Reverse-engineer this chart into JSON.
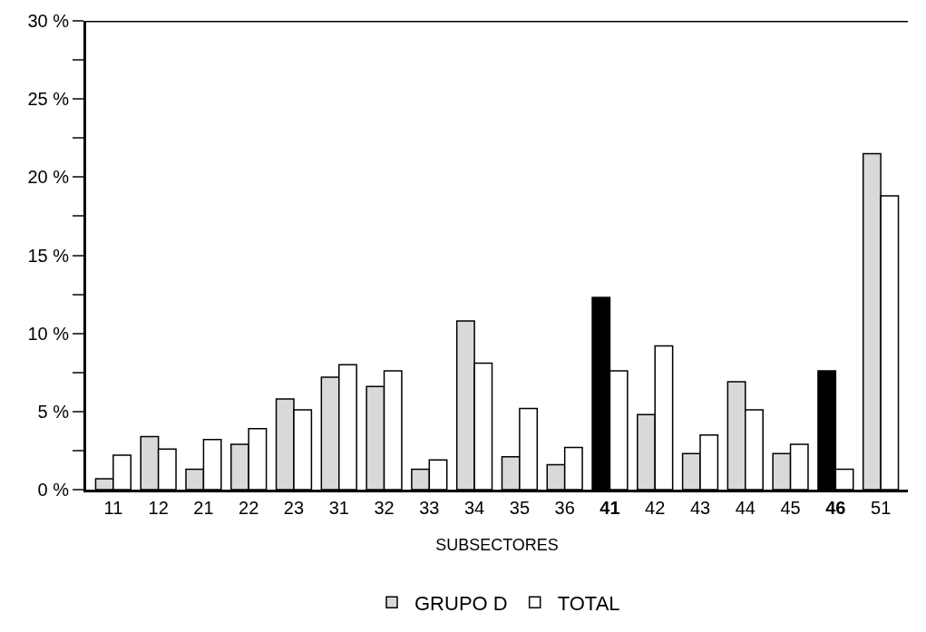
{
  "chart_data": {
    "type": "bar",
    "xlabel": "SUBSECTORES",
    "categories": [
      "11",
      "12",
      "21",
      "22",
      "23",
      "31",
      "32",
      "33",
      "34",
      "35",
      "36",
      "41",
      "42",
      "43",
      "44",
      "45",
      "46",
      "51"
    ],
    "series": [
      {
        "name": "GRUPO D",
        "colors": [
          "#d9d9d9",
          "#d9d9d9",
          "#d9d9d9",
          "#d9d9d9",
          "#d9d9d9",
          "#d9d9d9",
          "#d9d9d9",
          "#d9d9d9",
          "#d9d9d9",
          "#d9d9d9",
          "#d9d9d9",
          "#000000",
          "#d9d9d9",
          "#d9d9d9",
          "#d9d9d9",
          "#d9d9d9",
          "#000000",
          "#d9d9d9"
        ],
        "values": [
          0.7,
          3.4,
          1.3,
          2.9,
          5.8,
          7.2,
          6.6,
          1.3,
          10.8,
          2.1,
          1.6,
          12.3,
          4.8,
          2.3,
          6.9,
          2.3,
          7.6,
          21.5
        ]
      },
      {
        "name": "TOTAL",
        "color": "#ffffff",
        "values": [
          2.2,
          2.6,
          3.2,
          3.9,
          5.1,
          8.0,
          7.6,
          1.9,
          8.1,
          5.2,
          2.7,
          7.6,
          9.2,
          3.5,
          5.1,
          2.9,
          1.3,
          18.8
        ]
      }
    ],
    "ylim": [
      0,
      30
    ],
    "yticks": [
      {
        "value": 0,
        "label": "0 %"
      },
      {
        "value": 2.5,
        "label": null
      },
      {
        "value": 5,
        "label": "5 %"
      },
      {
        "value": 7.5,
        "label": null
      },
      {
        "value": 10,
        "label": "10 %"
      },
      {
        "value": 12.5,
        "label": null
      },
      {
        "value": 15,
        "label": "15 %"
      },
      {
        "value": 17.5,
        "label": null
      },
      {
        "value": 20,
        "label": "20 %"
      },
      {
        "value": 22.5,
        "label": null
      },
      {
        "value": 25,
        "label": "25 %"
      },
      {
        "value": 27.5,
        "label": null
      },
      {
        "value": 30,
        "label": "30 %"
      }
    ],
    "legend": "bottom"
  }
}
